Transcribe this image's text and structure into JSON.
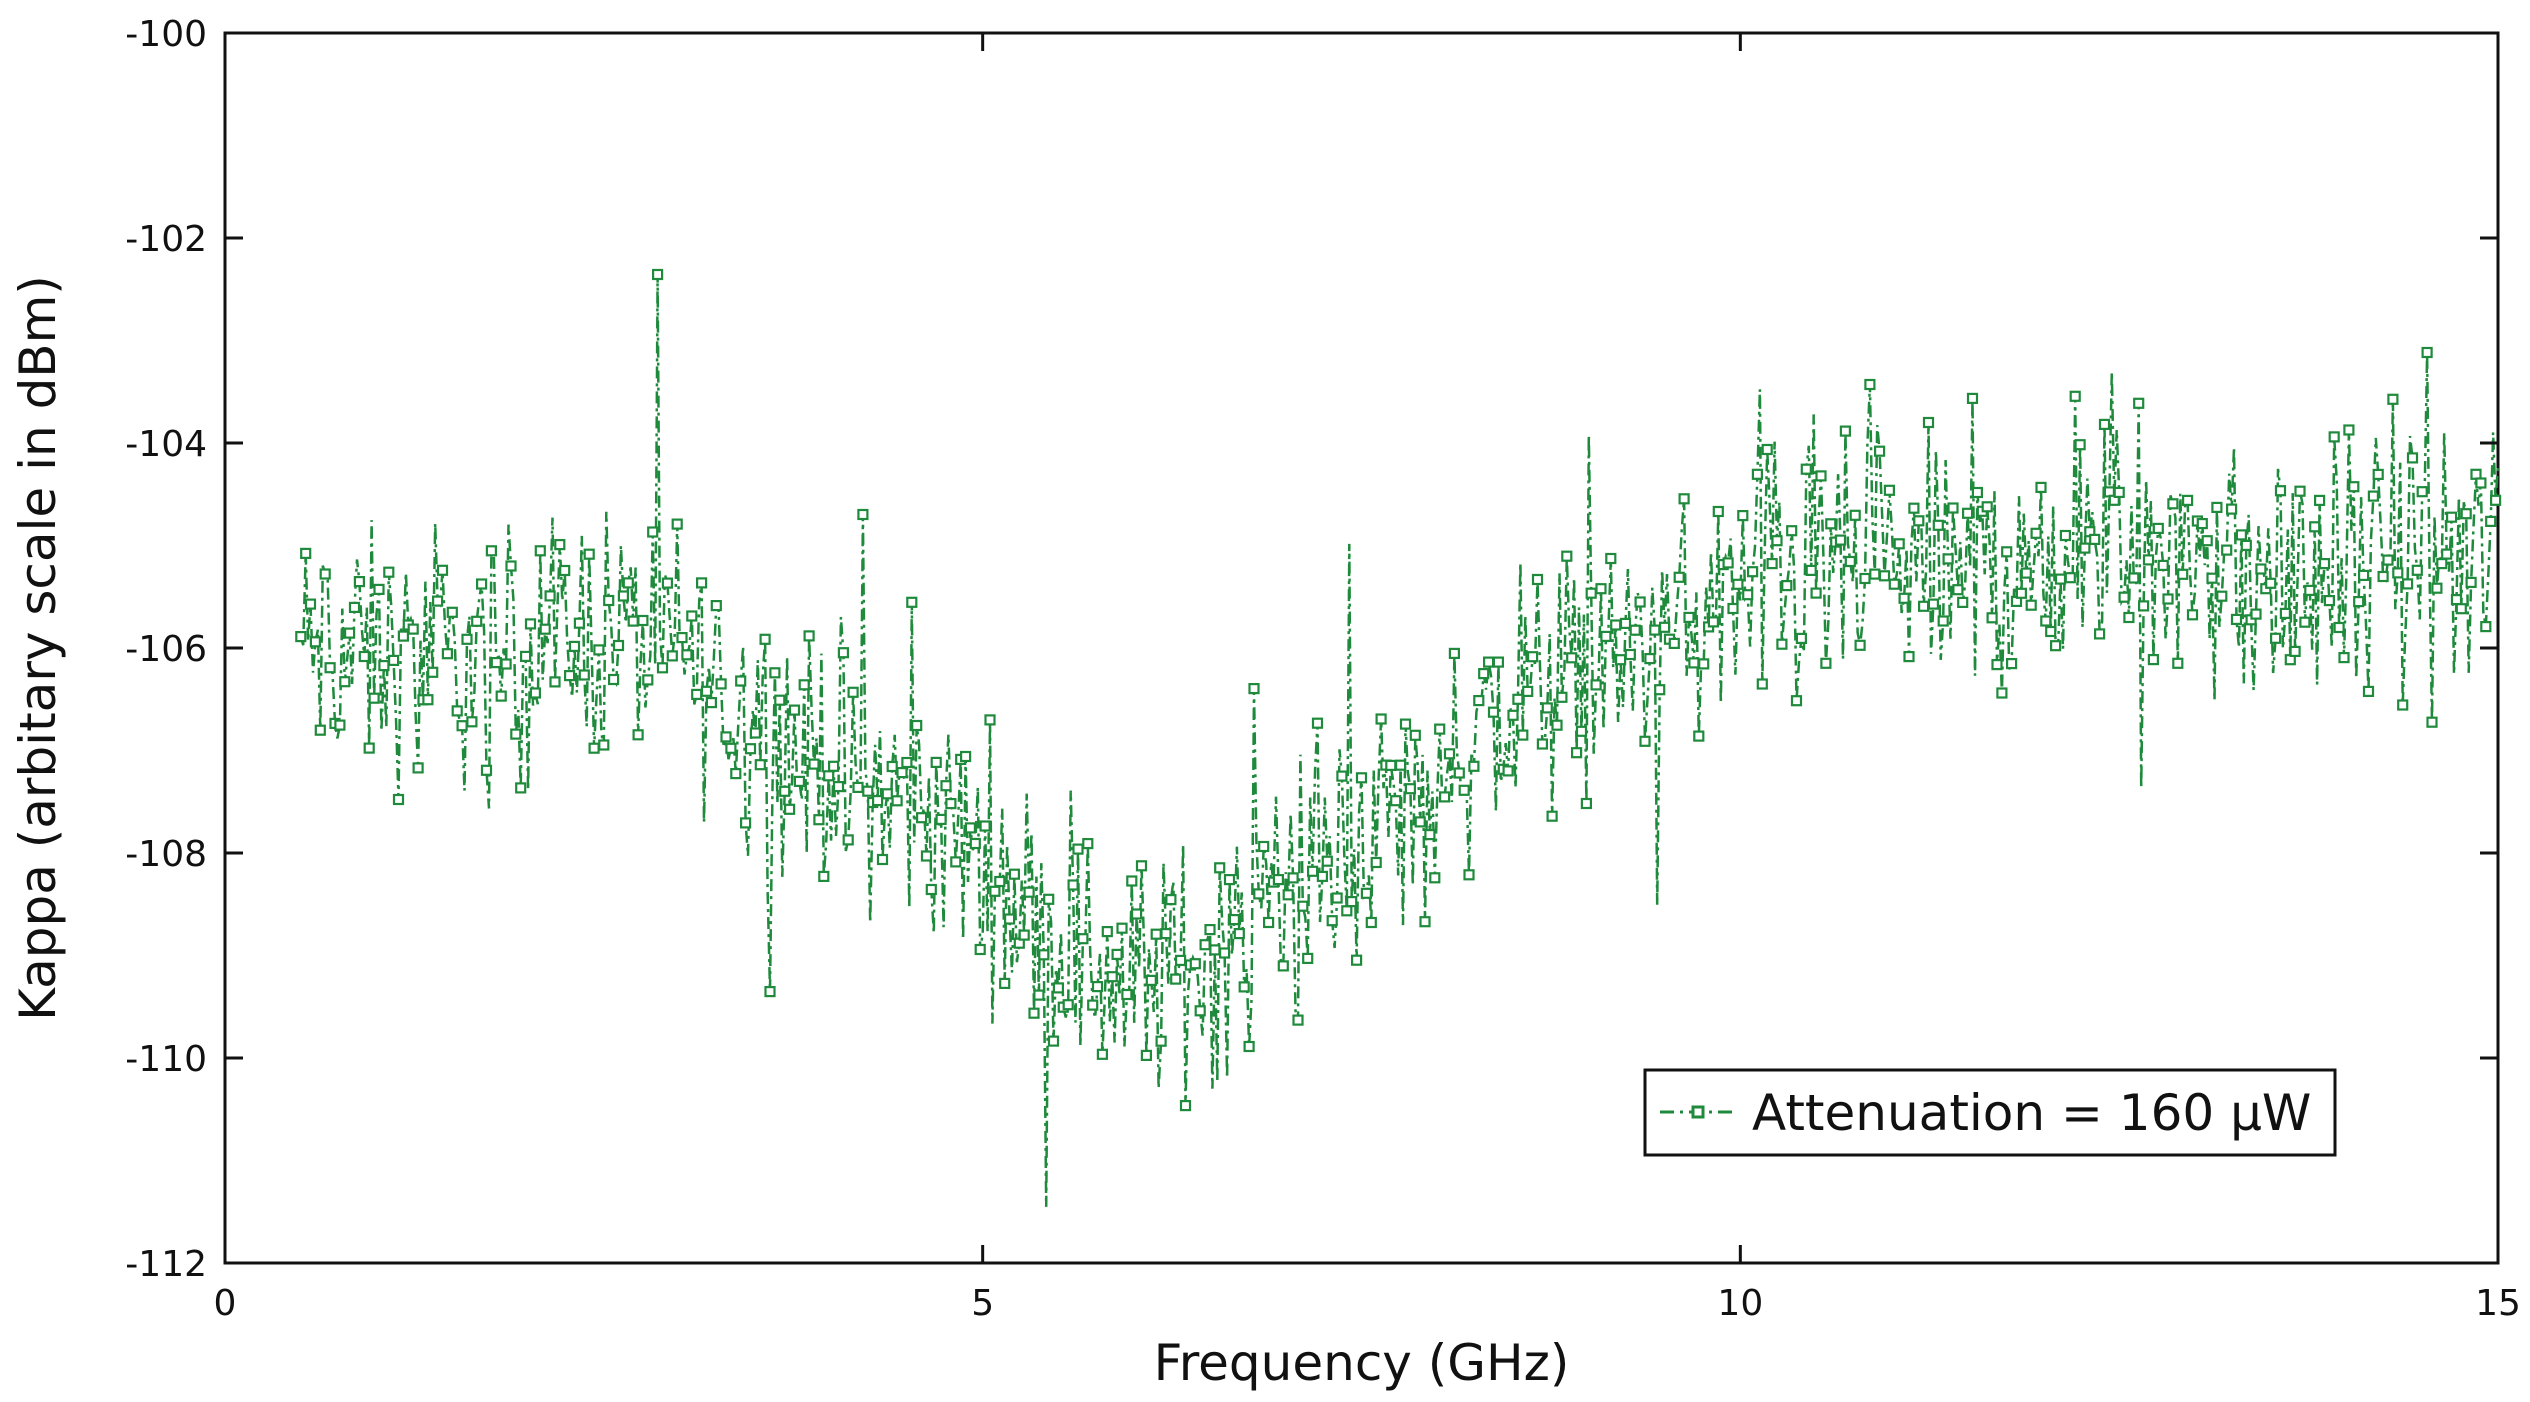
{
  "chart_data": {
    "type": "line",
    "title": "",
    "xlabel": "Frequency (GHz)",
    "ylabel": "Kappa (arbitary scale in dBm)",
    "xlim": [
      0,
      15
    ],
    "ylim": [
      -112,
      -100
    ],
    "xticks": [
      0,
      5,
      10,
      15
    ],
    "yticks": [
      -112,
      -110,
      -108,
      -106,
      -104,
      -102,
      -100
    ],
    "grid": false,
    "legend_position": "bottom-right",
    "colors": {
      "series": "#1f8a3c",
      "axis": "#111111"
    },
    "series": [
      {
        "name": "Attenuation = 160 μW",
        "line_style": "dash-dot",
        "marker": "square",
        "x_start": 0.5,
        "x_end": 15.0,
        "trend": [
          [
            0.5,
            -106.0
          ],
          [
            1.0,
            -106.1
          ],
          [
            1.5,
            -106.2
          ],
          [
            2.0,
            -106.0
          ],
          [
            2.5,
            -105.8
          ],
          [
            3.0,
            -106.0
          ],
          [
            3.5,
            -106.8
          ],
          [
            4.0,
            -107.1
          ],
          [
            4.5,
            -107.5
          ],
          [
            5.0,
            -108.0
          ],
          [
            5.5,
            -108.9
          ],
          [
            6.0,
            -109.3
          ],
          [
            6.5,
            -109.0
          ],
          [
            7.0,
            -108.5
          ],
          [
            7.5,
            -107.9
          ],
          [
            8.0,
            -107.3
          ],
          [
            8.5,
            -106.5
          ],
          [
            9.0,
            -106.2
          ],
          [
            9.5,
            -105.9
          ],
          [
            10.0,
            -105.5
          ],
          [
            10.5,
            -105.3
          ],
          [
            11.0,
            -105.2
          ],
          [
            11.5,
            -105.3
          ],
          [
            12.0,
            -105.2
          ],
          [
            12.5,
            -105.0
          ],
          [
            13.0,
            -105.1
          ],
          [
            13.5,
            -105.4
          ],
          [
            14.0,
            -105.2
          ],
          [
            14.5,
            -105.1
          ],
          [
            15.0,
            -105.2
          ]
        ]
      }
    ]
  }
}
